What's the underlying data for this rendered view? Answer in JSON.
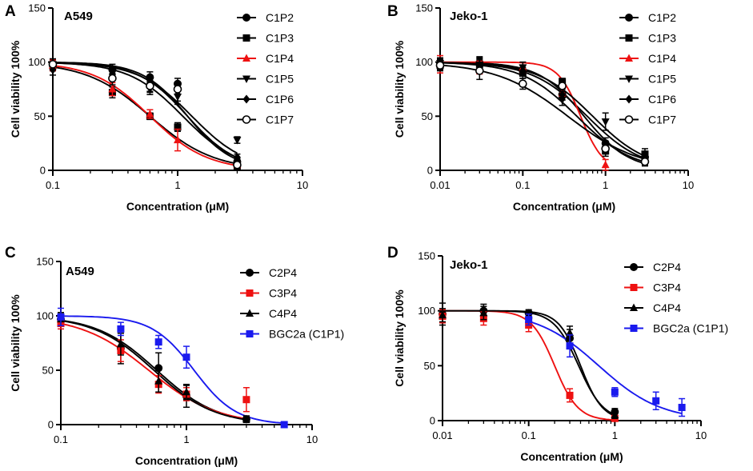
{
  "chart_data": [
    {
      "panel": "A",
      "type": "line",
      "title": "A549",
      "xlabel": "Concentration (μM)",
      "ylabel": "Cell viability 100%",
      "xscale": "log",
      "xlim": [
        0.1,
        10
      ],
      "ylim": [
        0,
        150
      ],
      "xticks": [
        "0.1",
        "1",
        "10"
      ],
      "yticks": [
        "0",
        "50",
        "100",
        "150"
      ],
      "legend_position": "top-right",
      "series": [
        {
          "name": "C1P2",
          "marker": "circle",
          "color": "#000000",
          "x": [
            0.1,
            0.3,
            0.6,
            1,
            3
          ],
          "y": [
            97,
            93,
            86,
            80,
            8
          ],
          "err": [
            5,
            5,
            5,
            5,
            3
          ],
          "fit": {
            "ic50": 1.2,
            "hill": 2.4
          }
        },
        {
          "name": "C1P3",
          "marker": "square",
          "color": "#000000",
          "x": [
            0.1,
            0.3,
            0.6,
            1,
            3
          ],
          "y": [
            97,
            72,
            50,
            40,
            3
          ],
          "err": [
            5,
            5,
            3,
            4,
            2
          ],
          "fit": {
            "ic50": 0.6,
            "hill": 1.7
          }
        },
        {
          "name": "C1P4",
          "marker": "triangle-up",
          "color": "#ee1111",
          "x": [
            0.1,
            0.3,
            0.6,
            1,
            3
          ],
          "y": [
            97,
            75,
            52,
            28,
            5
          ],
          "err": [
            5,
            6,
            4,
            10,
            3
          ],
          "fit": {
            "ic50": 0.6,
            "hill": 1.9
          }
        },
        {
          "name": "C1P5",
          "marker": "triangle-down",
          "color": "#000000",
          "x": [
            0.1,
            0.3,
            0.6,
            1,
            3
          ],
          "y": [
            98,
            90,
            75,
            68,
            28
          ],
          "err": [
            5,
            6,
            5,
            7,
            3
          ],
          "fit": {
            "ic50": 1.3,
            "hill": 2.0
          }
        },
        {
          "name": "C1P6",
          "marker": "diamond",
          "color": "#000000",
          "x": [
            0.1,
            0.3,
            0.6,
            1,
            3
          ],
          "y": [
            93,
            89,
            77,
            70,
            12
          ],
          "err": [
            5,
            6,
            5,
            6,
            3
          ],
          "fit": {
            "ic50": 1.1,
            "hill": 2.0
          }
        },
        {
          "name": "C1P7",
          "marker": "circle-open",
          "color": "#000000",
          "x": [
            0.1,
            0.3,
            0.6,
            1,
            3
          ],
          "y": [
            98,
            85,
            78,
            75,
            5
          ],
          "err": [
            5,
            6,
            5,
            5,
            3
          ],
          "fit": {
            "ic50": 1.2,
            "hill": 2.2
          }
        }
      ]
    },
    {
      "panel": "B",
      "type": "line",
      "title": "Jeko-1",
      "xlabel": "Concentration (μM)",
      "ylabel": "Cell viability 100%",
      "xscale": "log",
      "xlim": [
        0.01,
        10
      ],
      "ylim": [
        0,
        150
      ],
      "xticks": [
        "0.01",
        "0.1",
        "1",
        "10"
      ],
      "yticks": [
        "0",
        "50",
        "100",
        "150"
      ],
      "legend_position": "top-right",
      "series": [
        {
          "name": "C1P2",
          "marker": "circle",
          "color": "#000000",
          "x": [
            0.01,
            0.03,
            0.1,
            0.3,
            1,
            3
          ],
          "y": [
            99,
            99,
            92,
            70,
            25,
            12
          ],
          "err": [
            5,
            6,
            5,
            5,
            5,
            5
          ],
          "fit": {
            "ic50": 0.6,
            "hill": 1.3
          }
        },
        {
          "name": "C1P3",
          "marker": "square",
          "color": "#000000",
          "x": [
            0.01,
            0.03,
            0.1,
            0.3,
            1,
            3
          ],
          "y": [
            97,
            98,
            90,
            82,
            18,
            15
          ],
          "err": [
            5,
            6,
            5,
            3,
            5,
            5
          ],
          "fit": {
            "ic50": 0.55,
            "hill": 1.6
          }
        },
        {
          "name": "C1P4",
          "marker": "triangle-up",
          "color": "#ee1111",
          "x": [
            0.01,
            0.03,
            0.1,
            0.3,
            1
          ],
          "y": [
            98,
            95,
            95,
            72,
            5
          ],
          "err": [
            8,
            6,
            5,
            4,
            5
          ],
          "fit": {
            "ic50": 0.5,
            "hill": 3.2
          }
        },
        {
          "name": "C1P5",
          "marker": "triangle-down",
          "color": "#000000",
          "x": [
            0.01,
            0.03,
            0.1,
            0.3,
            1,
            3
          ],
          "y": [
            99,
            97,
            95,
            65,
            45,
            10
          ],
          "err": [
            5,
            6,
            5,
            5,
            8,
            5
          ],
          "fit": {
            "ic50": 0.7,
            "hill": 1.3
          }
        },
        {
          "name": "C1P6",
          "marker": "diamond",
          "color": "#000000",
          "x": [
            0.01,
            0.03,
            0.1,
            0.3,
            1,
            3
          ],
          "y": [
            98,
            96,
            92,
            70,
            22,
            10
          ],
          "err": [
            5,
            6,
            5,
            5,
            5,
            4
          ],
          "fit": {
            "ic50": 0.45,
            "hill": 1.3
          }
        },
        {
          "name": "C1P7",
          "marker": "circle-open",
          "color": "#000000",
          "x": [
            0.01,
            0.03,
            0.1,
            0.3,
            1,
            3
          ],
          "y": [
            97,
            92,
            80,
            78,
            20,
            8
          ],
          "err": [
            5,
            8,
            5,
            5,
            5,
            4
          ],
          "fit": {
            "ic50": 0.35,
            "hill": 1.0
          }
        }
      ]
    },
    {
      "panel": "C",
      "type": "line",
      "title": "A549",
      "xlabel": "Concentration (μM)",
      "ylabel": "Cell viability 100%",
      "xscale": "log",
      "xlim": [
        0.1,
        10
      ],
      "ylim": [
        0,
        150
      ],
      "xticks": [
        "0.1",
        "1",
        "10"
      ],
      "yticks": [
        "0",
        "50",
        "100",
        "150"
      ],
      "legend_position": "top-right",
      "series": [
        {
          "name": "C2P4",
          "marker": "circle",
          "color": "#000000",
          "x": [
            0.1,
            0.3,
            0.6,
            1,
            3
          ],
          "y": [
            97,
            70,
            52,
            26,
            5
          ],
          "err": [
            6,
            14,
            14,
            10,
            3
          ],
          "fit": {
            "ic50": 0.58,
            "hill": 1.8
          }
        },
        {
          "name": "C3P4",
          "marker": "square",
          "color": "#ee1111",
          "x": [
            0.1,
            0.3,
            0.6,
            1,
            3
          ],
          "y": [
            93,
            68,
            37,
            28,
            23
          ],
          "err": [
            5,
            10,
            8,
            6,
            11
          ],
          "fit": {
            "ic50": 0.5,
            "hill": 1.6
          }
        },
        {
          "name": "C4P4",
          "marker": "triangle-up",
          "color": "#000000",
          "x": [
            0.1,
            0.3,
            0.6,
            1,
            3
          ],
          "y": [
            97,
            74,
            40,
            30,
            5
          ],
          "err": [
            6,
            10,
            10,
            7,
            3
          ],
          "fit": {
            "ic50": 0.55,
            "hill": 1.8
          }
        },
        {
          "name": "BGC2a (C1P1)",
          "marker": "square",
          "color": "#1a1aee",
          "x": [
            0.1,
            0.3,
            0.6,
            1,
            6
          ],
          "y": [
            99,
            88,
            76,
            62,
            0
          ],
          "err": [
            8,
            6,
            6,
            10,
            1
          ],
          "fit": {
            "ic50": 1.15,
            "hill": 2.6
          }
        }
      ]
    },
    {
      "panel": "D",
      "type": "line",
      "title": "Jeko-1",
      "xlabel": "Concentration (μM)",
      "ylabel": "Cell viability 100%",
      "xscale": "log",
      "xlim": [
        0.01,
        10
      ],
      "ylim": [
        0,
        150
      ],
      "xticks": [
        "0.01",
        "0.1",
        "1",
        "10"
      ],
      "yticks": [
        "0",
        "50",
        "100",
        "150"
      ],
      "legend_position": "top-right",
      "series": [
        {
          "name": "C2P4",
          "marker": "circle",
          "color": "#000000",
          "x": [
            0.01,
            0.03,
            0.1,
            0.3,
            1
          ],
          "y": [
            97,
            100,
            98,
            75,
            8
          ],
          "err": [
            10,
            6,
            3,
            8,
            3
          ],
          "fit": {
            "ic50": 0.38,
            "hill": 3.0
          }
        },
        {
          "name": "C3P4",
          "marker": "square",
          "color": "#ee1111",
          "x": [
            0.01,
            0.03,
            0.1,
            0.3,
            1
          ],
          "y": [
            95,
            93,
            87,
            23,
            2
          ],
          "err": [
            6,
            6,
            6,
            6,
            2
          ],
          "fit": {
            "ic50": 0.2,
            "hill": 3.2
          }
        },
        {
          "name": "C4P4",
          "marker": "triangle-up",
          "color": "#000000",
          "x": [
            0.01,
            0.03,
            0.1,
            0.3,
            1
          ],
          "y": [
            96,
            98,
            96,
            80,
            5
          ],
          "err": [
            6,
            6,
            4,
            6,
            3
          ],
          "fit": {
            "ic50": 0.4,
            "hill": 3.4
          }
        },
        {
          "name": "BGC2a (C1P1)",
          "marker": "square",
          "color": "#1a1aee",
          "x": [
            0.1,
            0.3,
            1,
            3,
            6
          ],
          "y": [
            92,
            68,
            26,
            18,
            12
          ],
          "err": [
            5,
            10,
            4,
            8,
            8
          ],
          "fit": {
            "ic50": 0.65,
            "hill": 1.2
          }
        }
      ]
    }
  ]
}
